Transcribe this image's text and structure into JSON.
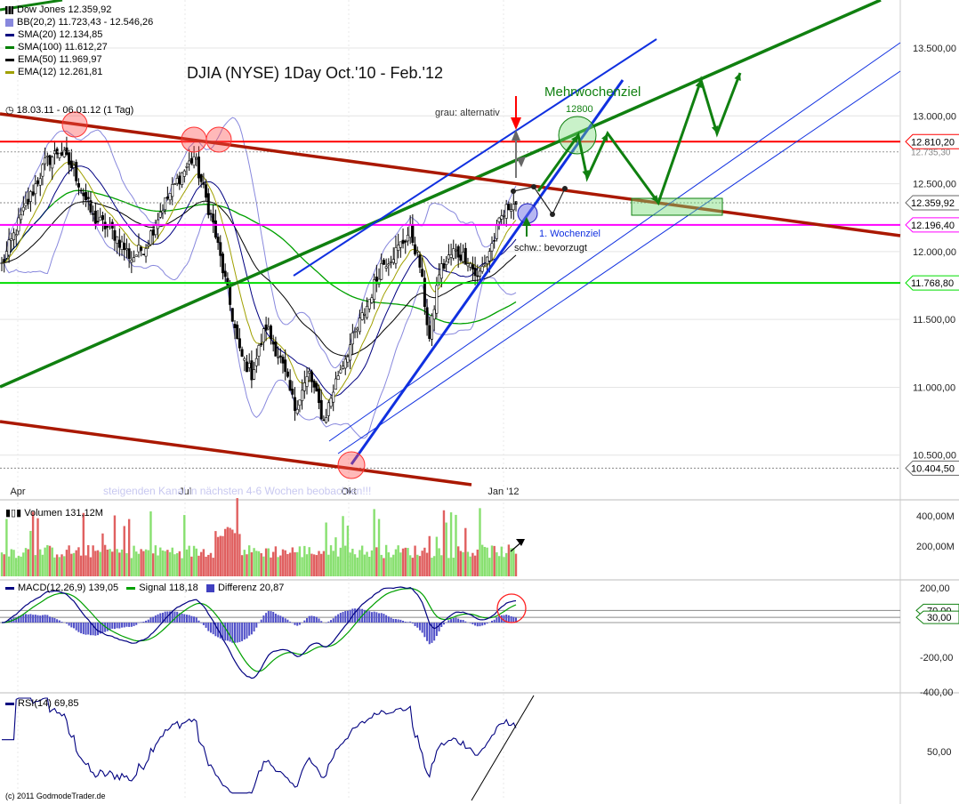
{
  "chart_title": "DJIA (NYSE) 1Day Oct.'10 - Feb.'12",
  "period_label": "18.03.11 - 06.01.12 (1 Tag)",
  "copyright": "(c) 2011 GodmodeTrader.de",
  "legend": {
    "main": [
      {
        "text": "Dow Jones 12.359,92",
        "color": "#000000",
        "kind": "candle-icon"
      },
      {
        "text": "BB(20,2) 11.723,43 - 12.546,26",
        "color": "#8080e0",
        "kind": "box"
      },
      {
        "text": "SMA(20) 12.134,85",
        "color": "#000080",
        "kind": "line"
      },
      {
        "text": "SMA(100) 11.612,27",
        "color": "#008000",
        "kind": "line"
      },
      {
        "text": "EMA(50) 11.969,97",
        "color": "#000000",
        "kind": "line"
      },
      {
        "text": "EMA(12) 12.261,81",
        "color": "#a0a000",
        "kind": "line"
      }
    ],
    "volume": {
      "text": "Volumen 131,12M"
    },
    "macd": [
      {
        "text": "MACD(12,26,9) 139,05",
        "color": "#000080"
      },
      {
        "text": "Signal 118,18",
        "color": "#00a000"
      },
      {
        "text": "Differenz 20,87",
        "color": "#4040c0"
      }
    ],
    "rsi": {
      "text": "RSI(14) 69,85",
      "color": "#000080"
    }
  },
  "annotations": {
    "grau": "grau: alternativ",
    "mehrwochenziel": "Mehrwochenziel",
    "target_12800": "12800",
    "wochenziel": "1. Wochenziel",
    "schw": "schw.: bevorzugt",
    "watermark": "steigenden Kanal in nächsten 4-6 Wochen beobachten!!!"
  },
  "colors": {
    "up": "#88e070",
    "down": "#e06060",
    "bb": "#8888dd",
    "sma20": "#000080",
    "sma100": "#00a000",
    "ema50": "#000000",
    "ema12": "#a0a000",
    "red_line": "#ff0000",
    "magenta": "#ff00ff",
    "green_line": "#00dd00",
    "trend_green": "#108010",
    "trend_red": "#aa1800",
    "channel_blue": "#1030e0"
  },
  "chart_data": [
    {
      "type": "line",
      "panel": "price",
      "yticks": [
        "13.500,00",
        "13.000,00",
        "12.500,00",
        "12.000,00",
        "11.500,00",
        "11.000,00",
        "10.500,00"
      ],
      "ytick_values": [
        13500,
        13000,
        12500,
        12000,
        11500,
        11000,
        10500
      ],
      "xticks": [
        "Apr",
        "Jul",
        "Okt",
        "Jan '12"
      ],
      "levels": [
        {
          "value": 12810.2,
          "label": "12.810,20",
          "color": "#ff0000"
        },
        {
          "value": 12359.92,
          "label": "12.359,92",
          "color": "#888888"
        },
        {
          "value": 12196.4,
          "label": "12.196,40",
          "color": "#ff00ff"
        },
        {
          "value": 11768.8,
          "label": "11.768,80",
          "color": "#00dd00"
        },
        {
          "value": 10404.5,
          "label": "10.404,50",
          "color": "#888888"
        }
      ],
      "extra_label": "12.735,30",
      "ylim": [
        10300,
        13700
      ],
      "close_anchors": [
        [
          0,
          11900
        ],
        [
          8,
          12250
        ],
        [
          18,
          12650
        ],
        [
          24,
          12750
        ],
        [
          30,
          12600
        ],
        [
          38,
          12250
        ],
        [
          46,
          12150
        ],
        [
          54,
          11950
        ],
        [
          60,
          12050
        ],
        [
          66,
          12300
        ],
        [
          74,
          12550
        ],
        [
          80,
          12700
        ],
        [
          84,
          12450
        ],
        [
          88,
          12200
        ],
        [
          94,
          11700
        ],
        [
          99,
          11250
        ],
        [
          104,
          11100
        ],
        [
          110,
          11450
        ],
        [
          116,
          11200
        ],
        [
          122,
          10850
        ],
        [
          128,
          11100
        ],
        [
          134,
          10750
        ],
        [
          140,
          11100
        ],
        [
          146,
          11350
        ],
        [
          152,
          11600
        ],
        [
          158,
          11900
        ],
        [
          164,
          12000
        ],
        [
          170,
          12150
        ],
        [
          174,
          11900
        ],
        [
          178,
          11350
        ],
        [
          182,
          11850
        ],
        [
          188,
          12000
        ],
        [
          194,
          11950
        ],
        [
          198,
          11800
        ],
        [
          204,
          12050
        ],
        [
          208,
          12250
        ],
        [
          212,
          12360
        ]
      ]
    },
    {
      "type": "bar",
      "panel": "volume",
      "yticks": [
        "400,00M",
        "200,00M"
      ],
      "ytick_values": [
        400,
        200
      ],
      "ylim": [
        0,
        500
      ]
    },
    {
      "type": "line",
      "panel": "macd",
      "yticks": [
        "200,00",
        "-200,00",
        "-400,00"
      ],
      "ytick_values": [
        200,
        -200,
        -400
      ],
      "levels": [
        {
          "value": 70,
          "label": "70,00"
        },
        {
          "value": 30,
          "label": "30,00"
        }
      ],
      "ylim": [
        -420,
        230
      ]
    },
    {
      "type": "line",
      "panel": "rsi",
      "yticks": [
        "50,00"
      ],
      "ytick_values": [
        50
      ],
      "ylim": [
        10,
        100
      ]
    }
  ]
}
